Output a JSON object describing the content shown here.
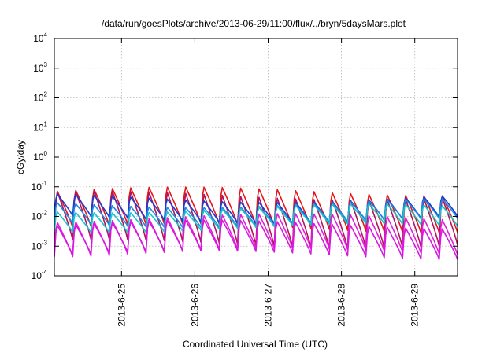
{
  "chart_data": {
    "type": "line",
    "title": "/data/run/goesPlots/archive/2013-06-29/11:00/flux/../bryn/5daysMars.plot",
    "xlabel": "Coordinated Universal Time (UTC)",
    "ylabel": "cGy/day",
    "yscale": "log",
    "ylim": [
      0.0001,
      10000
    ],
    "xlim": [
      "2013-06-24 02:00",
      "2013-06-29 14:00"
    ],
    "grid": true,
    "legend": "none",
    "x_ticks": [
      "2013-6-25",
      "2013-6-26",
      "2013-6-27",
      "2013-6-28",
      "2013-6-29"
    ],
    "y_ticks": [
      {
        "base": "10",
        "exp": "-4"
      },
      {
        "base": "10",
        "exp": "-3"
      },
      {
        "base": "10",
        "exp": "-2"
      },
      {
        "base": "10",
        "exp": "-1"
      },
      {
        "base": "10",
        "exp": "0"
      },
      {
        "base": "10",
        "exp": "1"
      },
      {
        "base": "10",
        "exp": "2"
      },
      {
        "base": "10",
        "exp": "3"
      },
      {
        "base": "10",
        "exp": "4"
      }
    ],
    "y_tick_values": [
      0.0001,
      0.001,
      0.01,
      0.1,
      1,
      10,
      100,
      1000,
      10000
    ],
    "oscillation": {
      "cycles_per_day": 4
    },
    "series": [
      {
        "color": "#e8141a",
        "peak": 0.08,
        "trough": 0.004
      },
      {
        "color": "#b0145a",
        "peak": 0.06,
        "trough": 0.0012
      },
      {
        "color": "#1a3cd6",
        "peak": 0.045,
        "trough": 0.008
      },
      {
        "color": "#1e88e5",
        "peak": 0.03,
        "trough": 0.006
      },
      {
        "color": "#18c4c8",
        "peak": 0.02,
        "trough": 0.004
      },
      {
        "color": "#e020d8",
        "peak": 0.01,
        "trough": 0.0006
      },
      {
        "color": "#d818e0",
        "peak": 0.006,
        "trough": 0.0005
      }
    ]
  }
}
